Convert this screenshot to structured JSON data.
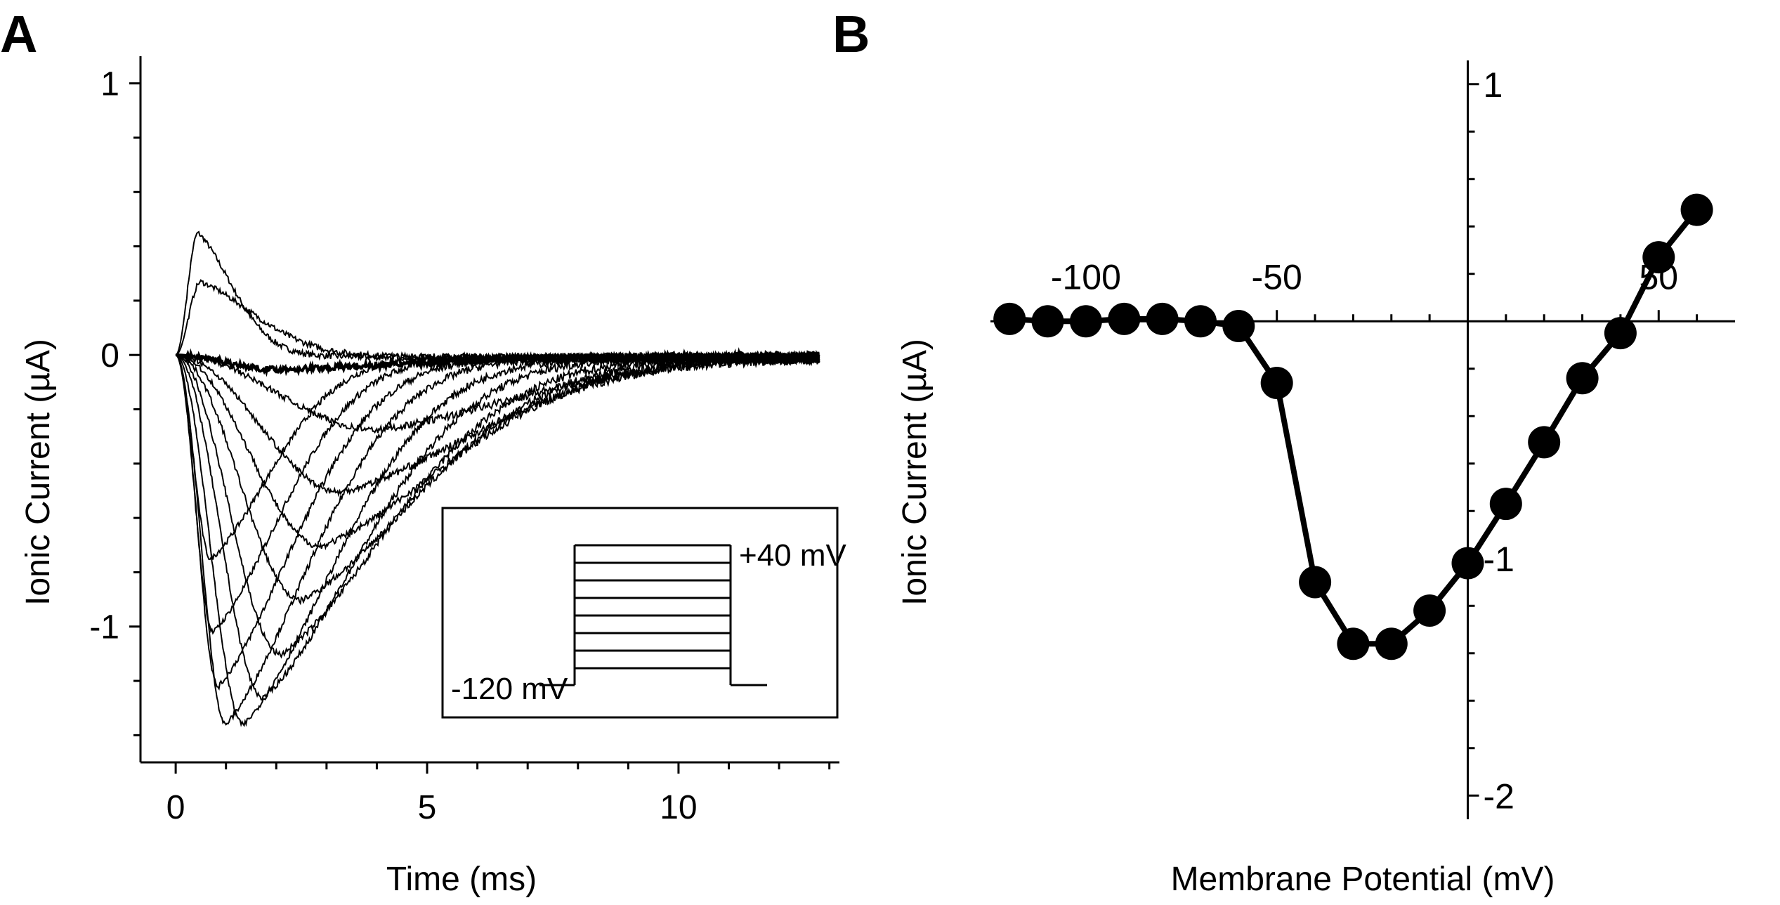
{
  "colors": {
    "background": "#ffffff",
    "ink": "#000000"
  },
  "chart_data": [
    {
      "panel": "A",
      "type": "line",
      "title": "",
      "xlabel": "Time (ms)",
      "ylabel": "Ionic Current (µA)",
      "xlim": [
        -0.7,
        13.2
      ],
      "ylim": [
        -1.5,
        1.1
      ],
      "xticks": [
        0,
        5,
        10
      ],
      "xtick_labels": [
        "0",
        "5",
        "10"
      ],
      "yticks": [
        -1,
        0,
        1
      ],
      "ytick_labels": [
        "-1",
        "0",
        "1"
      ],
      "x_minor_step": 1,
      "y_minor_step": 0.2,
      "grid": false,
      "trace_end_ms": 12.8,
      "series": [
        {
          "name": "trace 1",
          "peak_time_ms": 0.45,
          "peak_uA": 0.45,
          "decay_ms": 0.9
        },
        {
          "name": "trace 2",
          "peak_time_ms": 0.5,
          "peak_uA": 0.27,
          "decay_ms": 1.4
        },
        {
          "name": "trace 3",
          "peak_time_ms": 0.7,
          "peak_uA": -0.75,
          "decay_ms": 1.6
        },
        {
          "name": "trace 4",
          "peak_time_ms": 0.75,
          "peak_uA": -1.02,
          "decay_ms": 1.8
        },
        {
          "name": "trace 5",
          "peak_time_ms": 0.85,
          "peak_uA": -1.22,
          "decay_ms": 2.0
        },
        {
          "name": "trace 6",
          "peak_time_ms": 1.0,
          "peak_uA": -1.36,
          "decay_ms": 2.2
        },
        {
          "name": "trace 7",
          "peak_time_ms": 1.35,
          "peak_uA": -1.36,
          "decay_ms": 2.4
        },
        {
          "name": "trace 8",
          "peak_time_ms": 1.75,
          "peak_uA": -1.26,
          "decay_ms": 2.6
        },
        {
          "name": "trace 9",
          "peak_time_ms": 2.1,
          "peak_uA": -1.1,
          "decay_ms": 2.9
        },
        {
          "name": "trace 10",
          "peak_time_ms": 2.5,
          "peak_uA": -0.9,
          "decay_ms": 3.1
        },
        {
          "name": "trace 11",
          "peak_time_ms": 2.9,
          "peak_uA": -0.7,
          "decay_ms": 3.3
        },
        {
          "name": "trace 12",
          "peak_time_ms": 3.3,
          "peak_uA": -0.5,
          "decay_ms": 3.5
        },
        {
          "name": "trace 13",
          "peak_time_ms": 4.0,
          "peak_uA": -0.27,
          "decay_ms": 3.6
        },
        {
          "name": "trace 14",
          "peak_time_ms": 2.0,
          "peak_uA": -0.05,
          "decay_ms": 3.0
        }
      ],
      "inset": {
        "description": "voltage step protocol",
        "holding_label": "-120 mV",
        "max_step_label": "+40 mV",
        "step_count": 8
      }
    },
    {
      "panel": "B",
      "type": "line",
      "title": "",
      "xlabel": "Membrane Potential (mV)",
      "ylabel": "Ionic Current  (µA)",
      "xlim": [
        -125,
        70
      ],
      "ylim": [
        -2.1,
        1.1
      ],
      "xticks": [
        -100,
        -50,
        50
      ],
      "xtick_labels": [
        "-100",
        "-50",
        "50"
      ],
      "yticks": [
        1,
        -1,
        -2
      ],
      "ytick_labels": [
        "1",
        "-1",
        "-2"
      ],
      "x_minor_step": 10,
      "y_minor_step": 0.2,
      "grid": false,
      "x": [
        -120,
        -110,
        -100,
        -90,
        -80,
        -70,
        -60,
        -50,
        -40,
        -30,
        -20,
        -10,
        0,
        10,
        20,
        30,
        40,
        50,
        60
      ],
      "series": [
        {
          "name": "I-V",
          "values": [
            0.01,
            0.0,
            0.0,
            0.01,
            0.01,
            0.0,
            -0.02,
            -0.26,
            -1.1,
            -1.36,
            -1.36,
            -1.22,
            -1.02,
            -0.77,
            -0.51,
            -0.24,
            -0.05,
            0.27,
            0.47
          ]
        }
      ]
    }
  ],
  "panels": {
    "a": {
      "letter": "A"
    },
    "b": {
      "letter": "B"
    }
  }
}
